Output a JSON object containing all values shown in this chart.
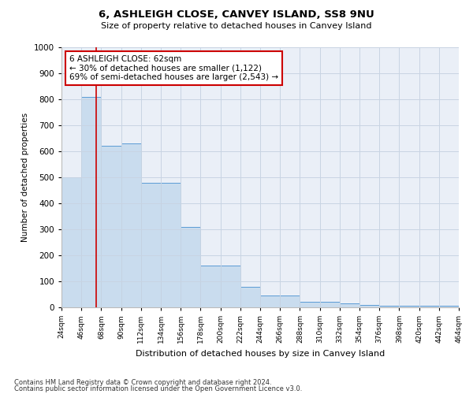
{
  "title1": "6, ASHLEIGH CLOSE, CANVEY ISLAND, SS8 9NU",
  "title2": "Size of property relative to detached houses in Canvey Island",
  "xlabel": "Distribution of detached houses by size in Canvey Island",
  "ylabel": "Number of detached properties",
  "footnote1": "Contains HM Land Registry data © Crown copyright and database right 2024.",
  "footnote2": "Contains public sector information licensed under the Open Government Licence v3.0.",
  "annotation_title": "6 ASHLEIGH CLOSE: 62sqm",
  "annotation_line1": "← 30% of detached houses are smaller (1,122)",
  "annotation_line2": "69% of semi-detached houses are larger (2,543) →",
  "subject_value": 62,
  "bins": [
    24,
    46,
    68,
    90,
    112,
    134,
    156,
    178,
    200,
    222,
    244,
    266,
    288,
    310,
    332,
    354,
    376,
    398,
    420,
    442,
    464
  ],
  "bar_heights": [
    500,
    810,
    620,
    630,
    480,
    480,
    310,
    160,
    160,
    80,
    45,
    45,
    20,
    20,
    15,
    10,
    5,
    5,
    5,
    5
  ],
  "bar_color": "#c9dcee",
  "bar_edge_color": "#5b9bd5",
  "vline_color": "#cc0000",
  "annotation_box_edge": "#cc0000",
  "grid_color": "#c8d4e3",
  "bg_color": "#eaeff7",
  "ylim": [
    0,
    1000
  ],
  "yticks": [
    0,
    100,
    200,
    300,
    400,
    500,
    600,
    700,
    800,
    900,
    1000
  ]
}
